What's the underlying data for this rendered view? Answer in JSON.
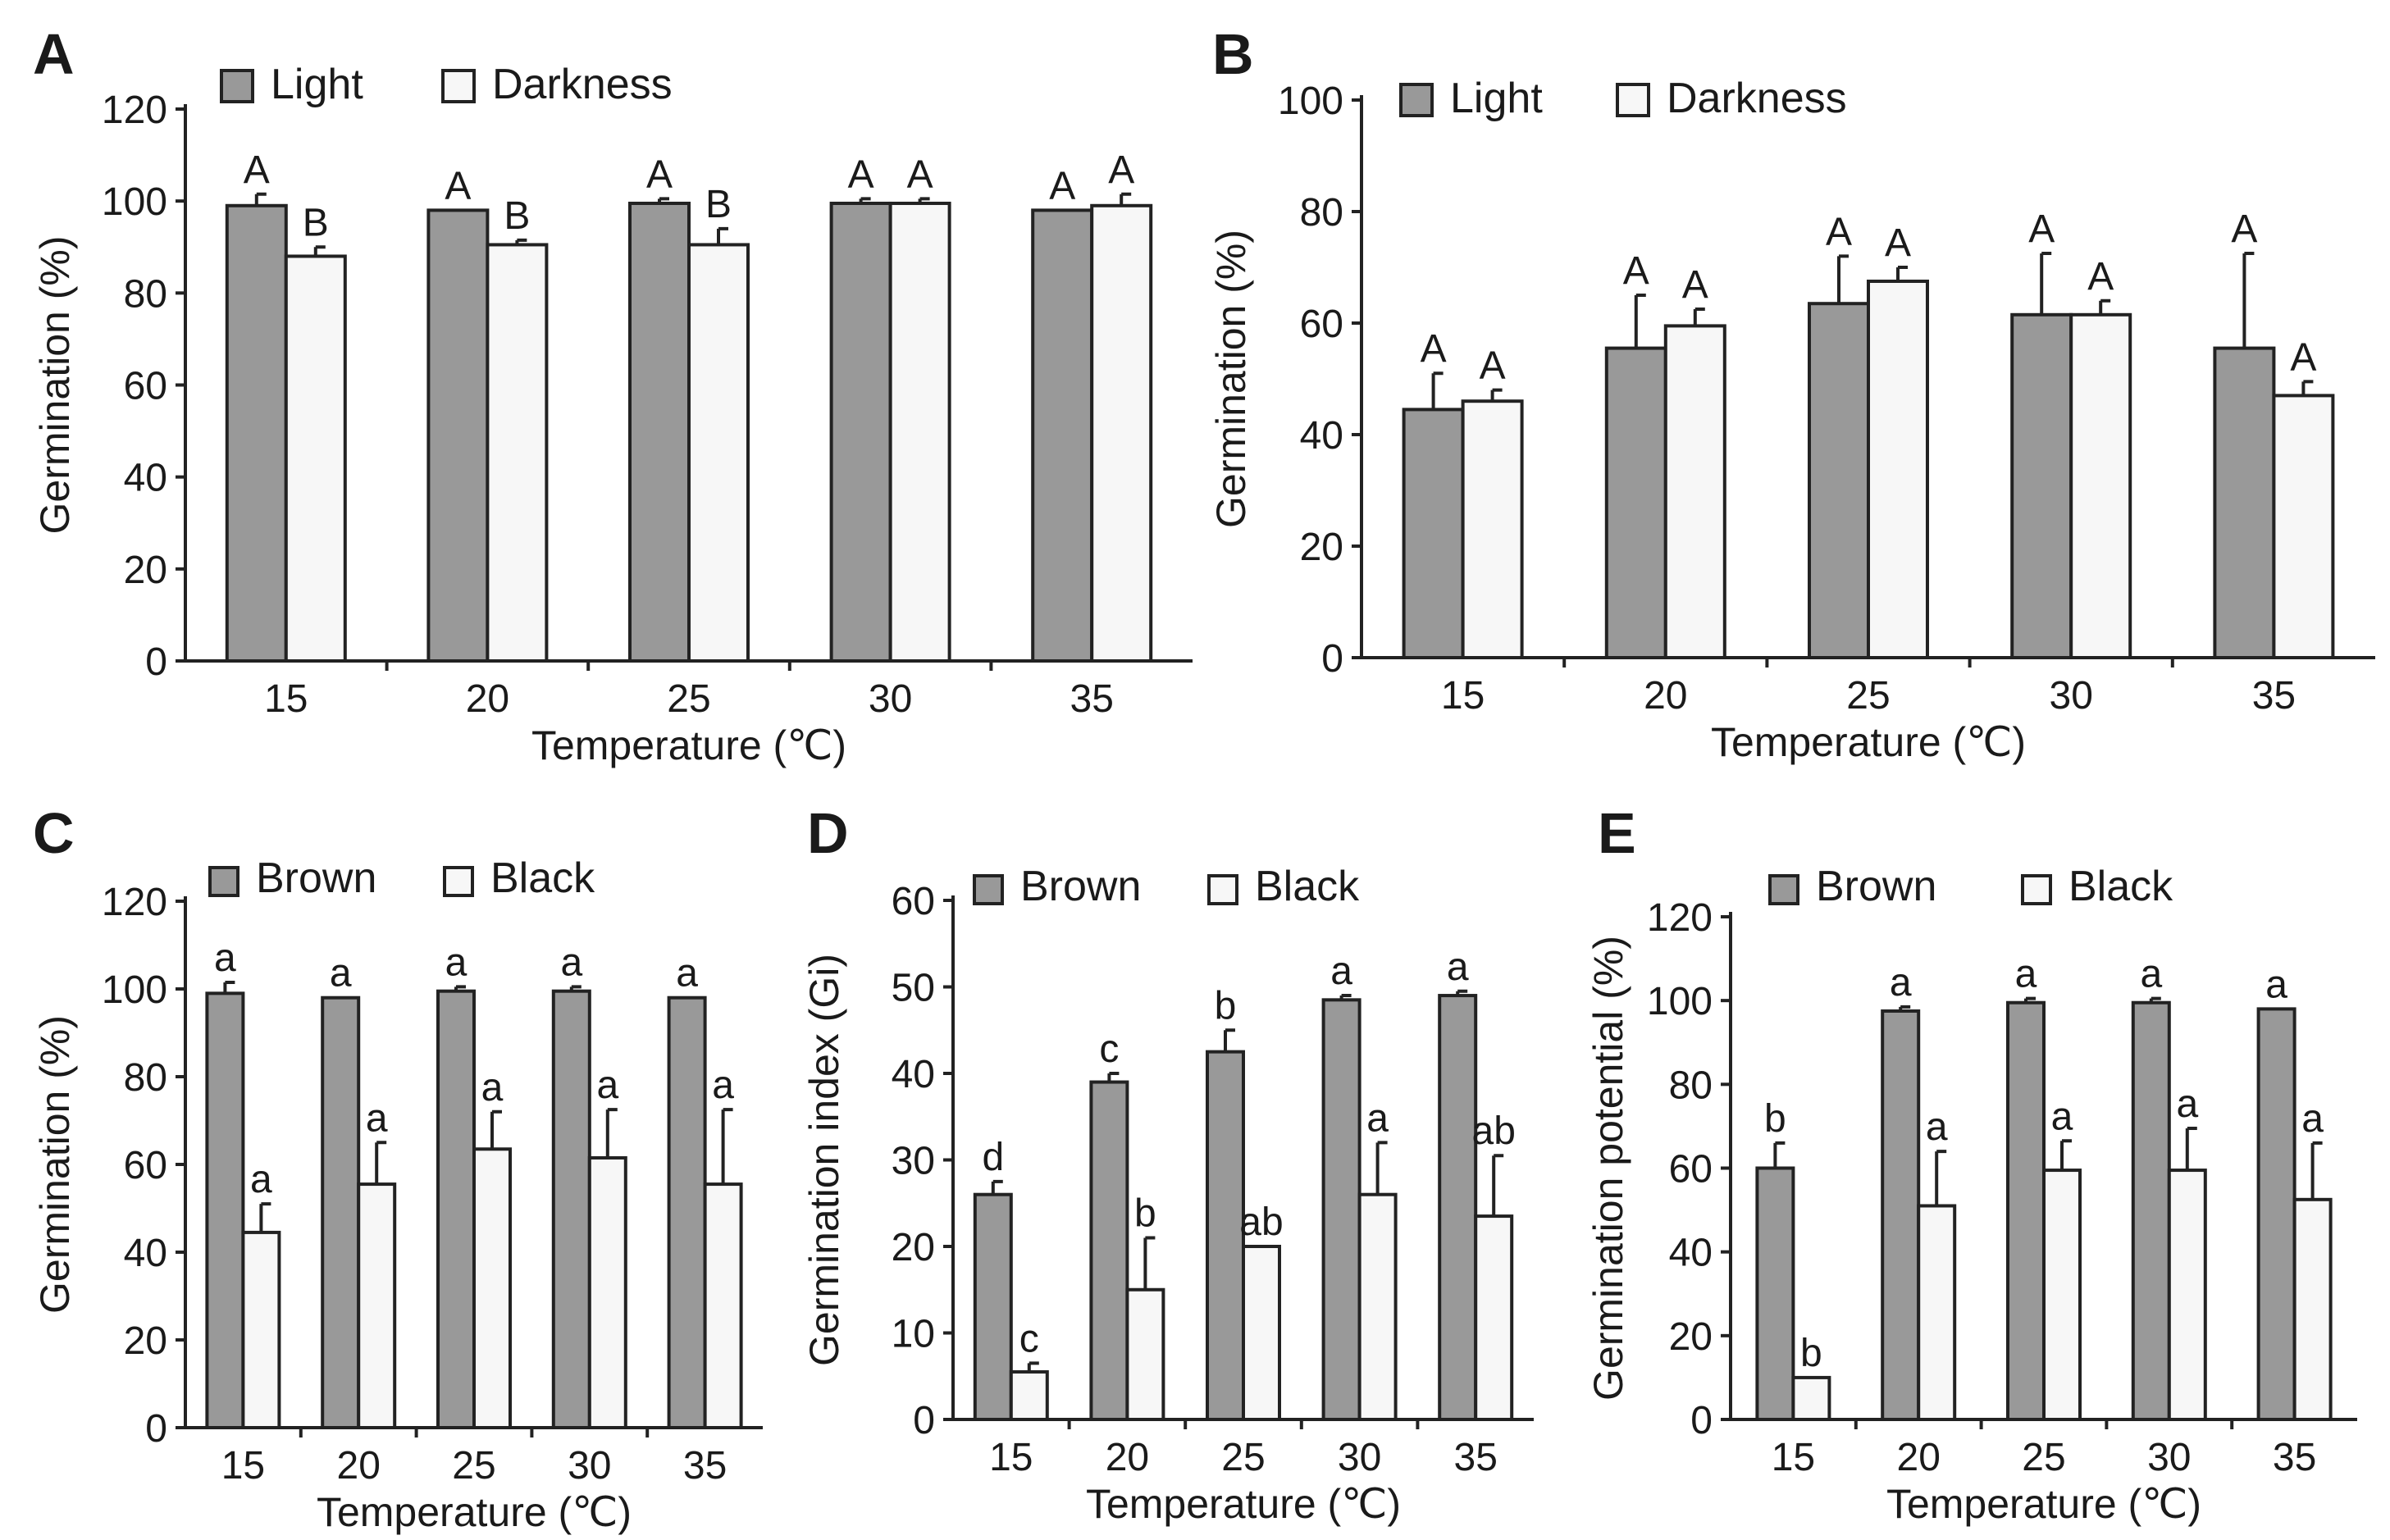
{
  "chart_data": [
    {
      "id": "A",
      "type": "bar",
      "panel_label": "A",
      "categories": [
        "15",
        "20",
        "25",
        "30",
        "35"
      ],
      "xlabel": "Temperature (℃)",
      "ylabel": "Germination (%)",
      "ylim": [
        0,
        120
      ],
      "yticks": [
        "0",
        "20",
        "40",
        "60",
        "80",
        "100",
        "120"
      ],
      "grid": false,
      "legend_position": "top-left",
      "series": [
        {
          "name": "Light",
          "color": "#999999",
          "values": [
            99,
            98,
            99.5,
            99.5,
            98
          ],
          "errors": [
            2.5,
            0,
            1,
            1,
            0
          ],
          "labels": [
            "A",
            "A",
            "A",
            "A",
            "A"
          ]
        },
        {
          "name": "Darkness",
          "color": "#f7f7f7",
          "values": [
            88,
            90.5,
            90.5,
            99.5,
            99
          ],
          "errors": [
            2,
            1,
            3.5,
            1,
            2.5
          ],
          "labels": [
            "B",
            "B",
            "B",
            "A",
            "A"
          ]
        }
      ]
    },
    {
      "id": "B",
      "type": "bar",
      "panel_label": "B",
      "categories": [
        "15",
        "20",
        "25",
        "30",
        "35"
      ],
      "xlabel": "Temperature (℃)",
      "ylabel": "Germination (%)",
      "ylim": [
        0,
        100
      ],
      "yticks": [
        "0",
        "20",
        "40",
        "60",
        "80",
        "100"
      ],
      "grid": false,
      "legend_position": "top-left",
      "series": [
        {
          "name": "Light",
          "color": "#999999",
          "values": [
            44.5,
            55.5,
            63.5,
            61.5,
            55.5
          ],
          "errors": [
            6.5,
            9.5,
            8.5,
            11,
            17
          ],
          "labels": [
            "A",
            "A",
            "A",
            "A",
            "A"
          ]
        },
        {
          "name": "Darkness",
          "color": "#f7f7f7",
          "values": [
            46,
            59.5,
            67.5,
            61.5,
            47
          ],
          "errors": [
            2,
            3,
            2.5,
            2.5,
            2.5
          ],
          "labels": [
            "A",
            "A",
            "A",
            "A",
            "A"
          ]
        }
      ]
    },
    {
      "id": "C",
      "type": "bar",
      "panel_label": "C",
      "categories": [
        "15",
        "20",
        "25",
        "30",
        "35"
      ],
      "xlabel": "Temperature (℃)",
      "ylabel": "Germination (%)",
      "ylim": [
        0,
        120
      ],
      "yticks": [
        "0",
        "20",
        "40",
        "60",
        "80",
        "100",
        "120"
      ],
      "grid": false,
      "legend_position": "top-left",
      "series": [
        {
          "name": "Brown",
          "color": "#999999",
          "values": [
            99,
            98,
            99.5,
            99.5,
            98
          ],
          "errors": [
            2.5,
            0,
            1,
            1,
            0
          ],
          "labels": [
            "a",
            "a",
            "a",
            "a",
            "a"
          ]
        },
        {
          "name": "Black",
          "color": "#f7f7f7",
          "values": [
            44.5,
            55.5,
            63.5,
            61.5,
            55.5
          ],
          "errors": [
            6.5,
            9.5,
            8.5,
            11,
            17
          ],
          "labels": [
            "a",
            "a",
            "a",
            "a",
            "a"
          ]
        }
      ]
    },
    {
      "id": "D",
      "type": "bar",
      "panel_label": "D",
      "categories": [
        "15",
        "20",
        "25",
        "30",
        "35"
      ],
      "xlabel": "Temperature (℃)",
      "ylabel": "Germination index (Gi)",
      "ylim": [
        0,
        60
      ],
      "yticks": [
        "0",
        "10",
        "20",
        "30",
        "40",
        "50",
        "60"
      ],
      "grid": false,
      "legend_position": "top-left",
      "series": [
        {
          "name": "Brown",
          "color": "#999999",
          "values": [
            26,
            39,
            42.5,
            48.5,
            49
          ],
          "errors": [
            1.5,
            1,
            2.5,
            0.5,
            0.5
          ],
          "labels": [
            "d",
            "c",
            "b",
            "a",
            "a"
          ]
        },
        {
          "name": "Black",
          "color": "#f7f7f7",
          "values": [
            5.5,
            15,
            20,
            26,
            23.5
          ],
          "errors": [
            1,
            6,
            0,
            6,
            7
          ],
          "labels": [
            "c",
            "b",
            "ab",
            "a",
            "ab"
          ]
        }
      ]
    },
    {
      "id": "E",
      "type": "bar",
      "panel_label": "E",
      "categories": [
        "15",
        "20",
        "25",
        "30",
        "35"
      ],
      "xlabel": "Temperature (℃)",
      "ylabel": "Germination potential (%)",
      "ylim": [
        0,
        120
      ],
      "yticks": [
        "0",
        "20",
        "40",
        "60",
        "80",
        "100",
        "120"
      ],
      "grid": false,
      "legend_position": "top-left",
      "series": [
        {
          "name": "Brown",
          "color": "#999999",
          "values": [
            60,
            97.5,
            99.5,
            99.5,
            98
          ],
          "errors": [
            6,
            1,
            1,
            1,
            0
          ],
          "labels": [
            "b",
            "a",
            "a",
            "a",
            "a"
          ]
        },
        {
          "name": "Black",
          "color": "#f7f7f7",
          "values": [
            10,
            51,
            59.5,
            59.5,
            52.5
          ],
          "errors": [
            0,
            13,
            7,
            10,
            13.5
          ],
          "labels": [
            "b",
            "a",
            "a",
            "a",
            "a"
          ]
        }
      ]
    }
  ]
}
